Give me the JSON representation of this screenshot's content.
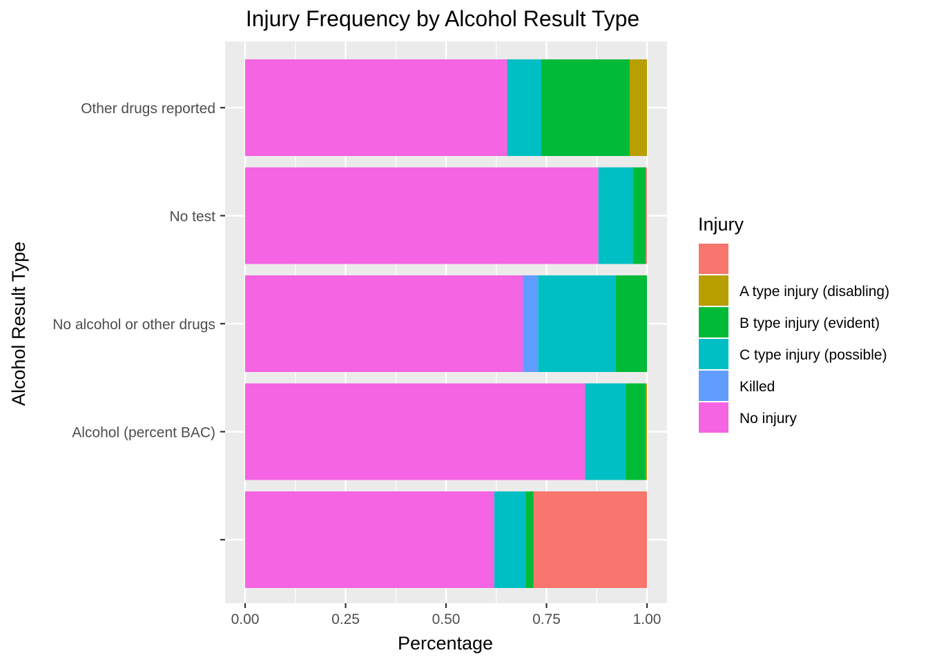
{
  "chart_data": {
    "type": "bar",
    "orientation": "horizontal",
    "stacked": true,
    "title": "Injury Frequency by Alcohol Result Type",
    "xlabel": "Percentage",
    "ylabel": "Alcohol Result Type",
    "xlim": [
      0,
      1
    ],
    "x_ticks": [
      "0.00",
      "0.25",
      "0.50",
      "0.75",
      "1.00"
    ],
    "x_tick_values": [
      0,
      0.25,
      0.5,
      0.75,
      1.0
    ],
    "grid": true,
    "legend_position": "right",
    "legend_title": "Injury",
    "categories": [
      "",
      "Alcohol (percent BAC)",
      "No alcohol or other drugs",
      "No test",
      "Other drugs reported"
    ],
    "series": [
      {
        "name": "",
        "color": "#F8766D",
        "values": [
          0.282,
          0.0,
          0.0,
          0.003,
          0.0
        ]
      },
      {
        "name": "A type injury (disabling)",
        "color": "#B79F00",
        "values": [
          0.0,
          0.003,
          0.0,
          0.0,
          0.043
        ]
      },
      {
        "name": "B type injury (evident)",
        "color": "#00BA38",
        "values": [
          0.02,
          0.05,
          0.078,
          0.032,
          0.22
        ]
      },
      {
        "name": "C type injury (possible)",
        "color": "#00BFC4",
        "values": [
          0.078,
          0.101,
          0.193,
          0.086,
          0.085
        ]
      },
      {
        "name": "Killed",
        "color": "#619CFF",
        "values": [
          0.0,
          0.0,
          0.038,
          0.0,
          0.0
        ]
      },
      {
        "name": "No injury",
        "color": "#F564E3",
        "values": [
          0.62,
          0.846,
          0.691,
          0.879,
          0.652
        ]
      }
    ]
  }
}
